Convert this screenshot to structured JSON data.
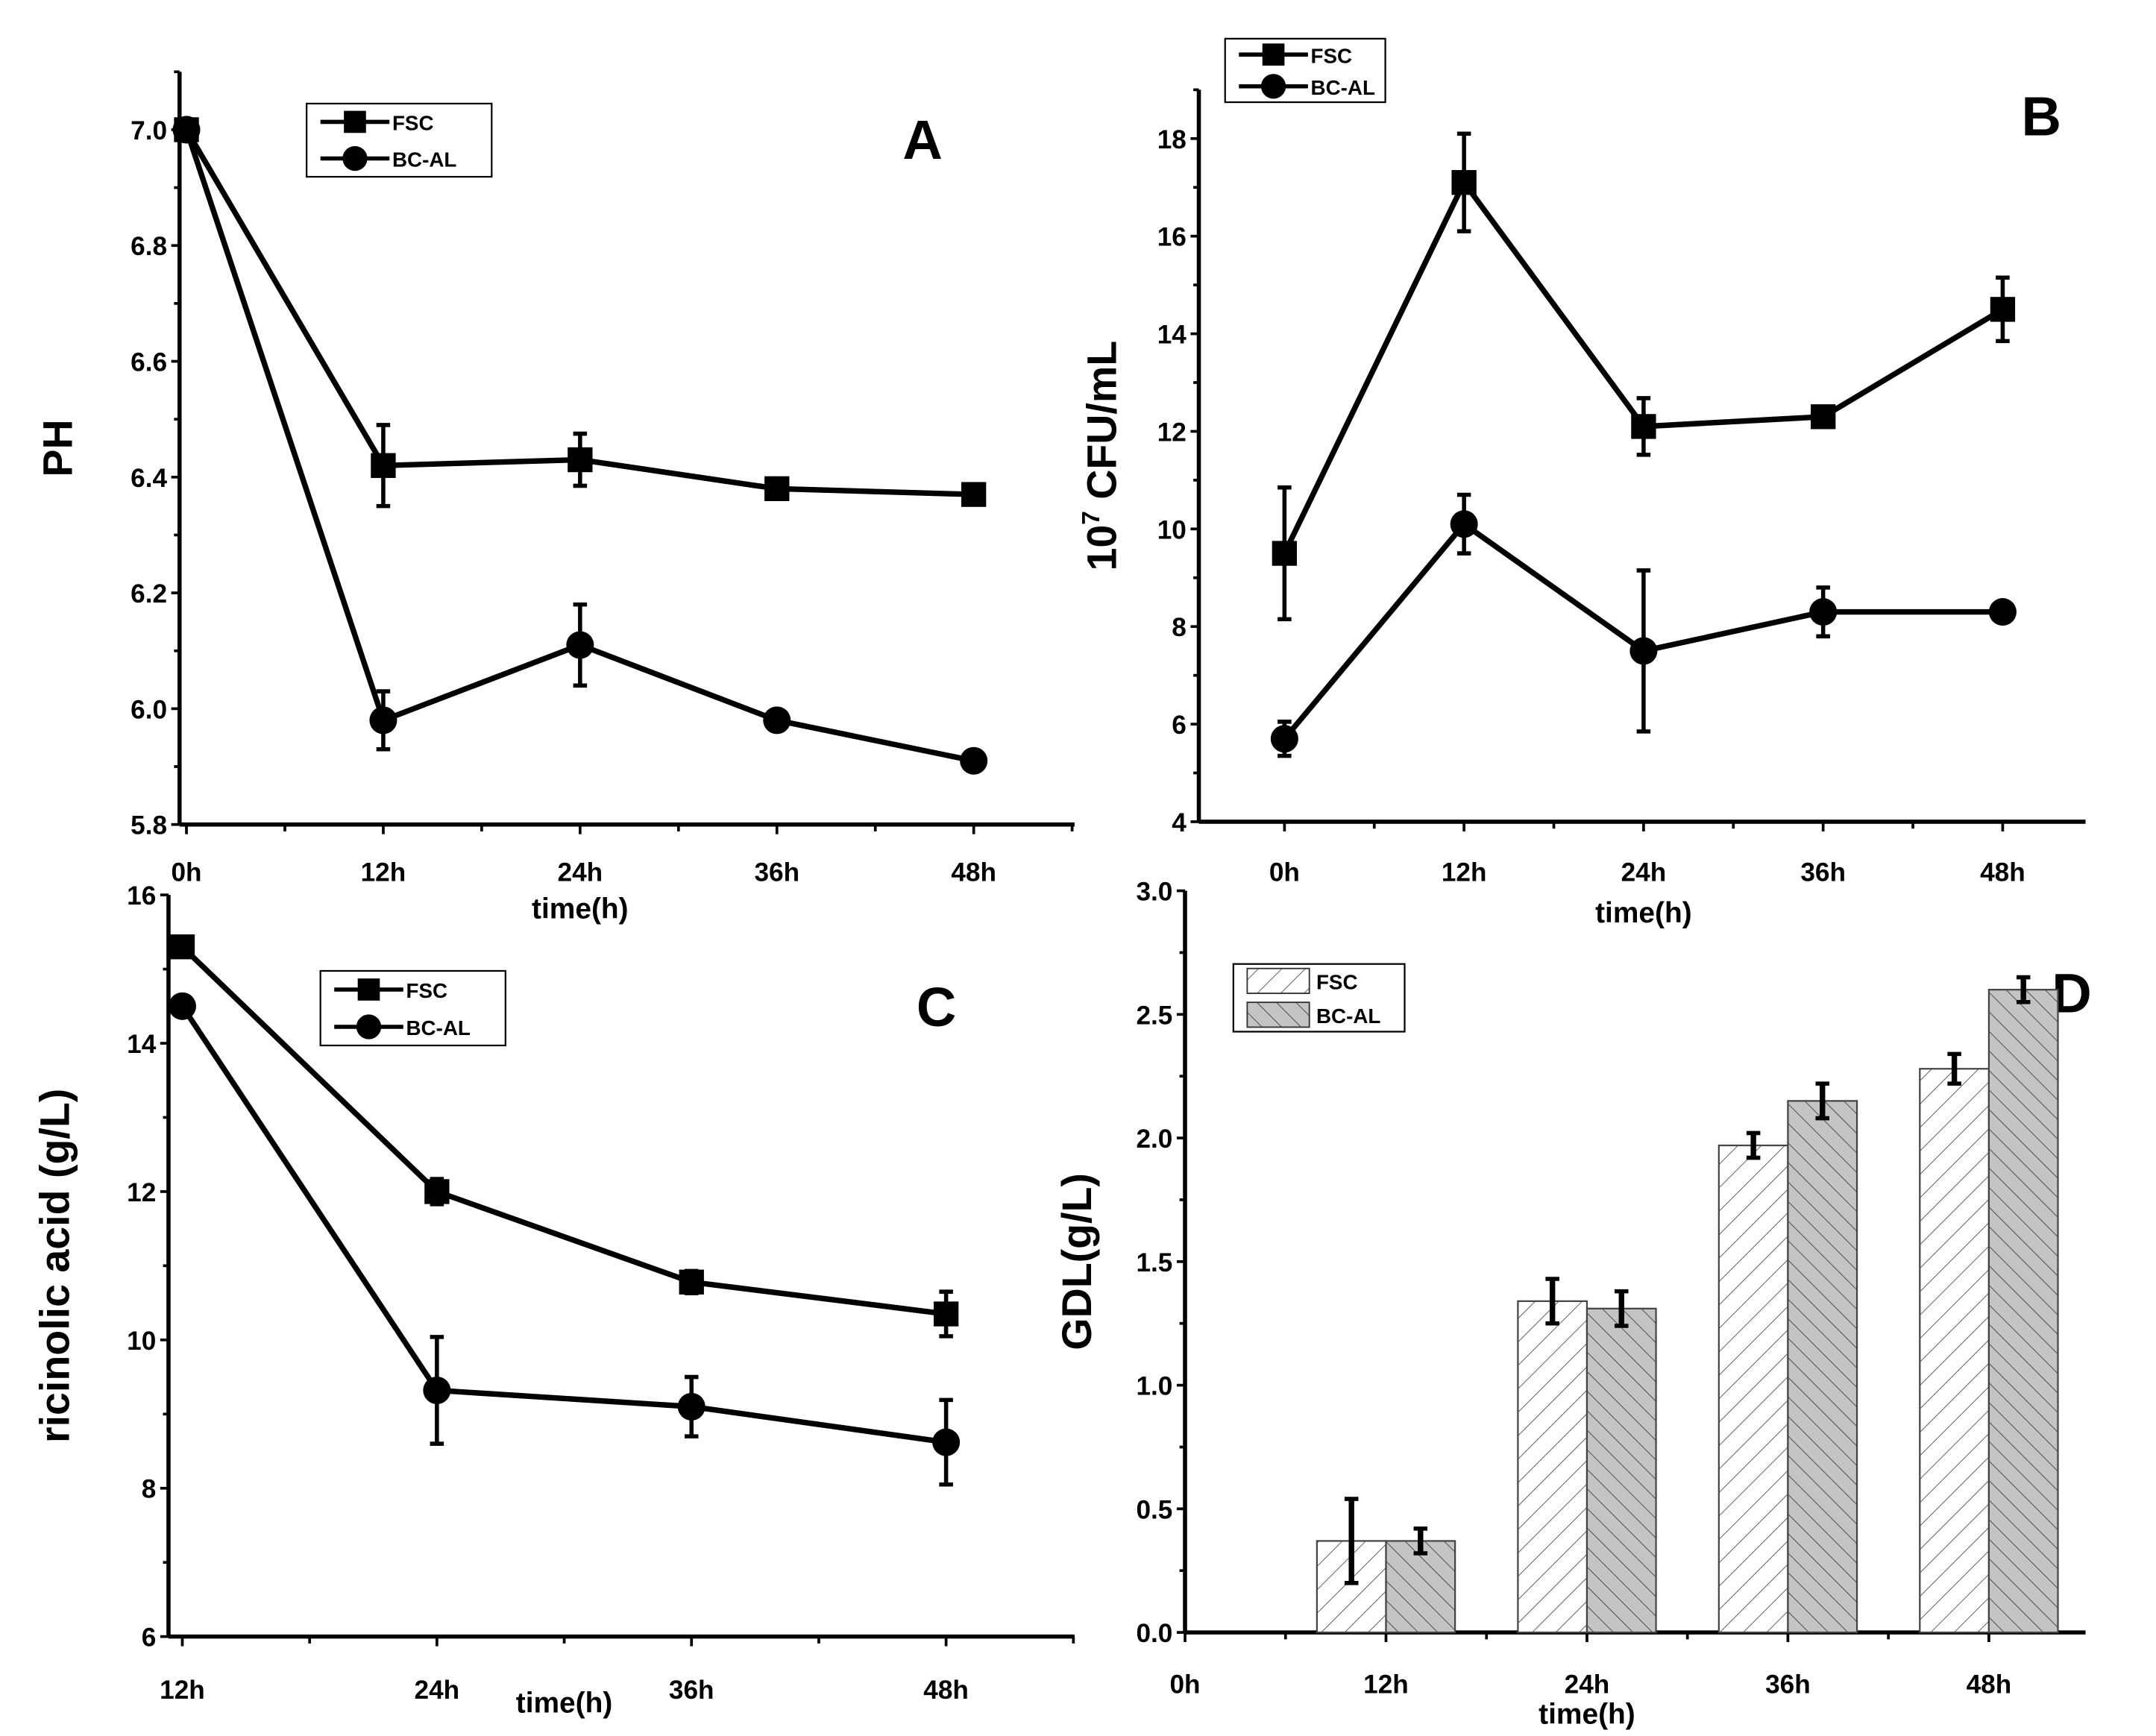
{
  "chart_data": [
    {
      "panel": "A",
      "type": "line",
      "xlabel": "time(h)",
      "ylabel": "PH",
      "x": [
        0,
        12,
        24,
        36,
        48
      ],
      "x_tick_labels": [
        "0h",
        "12h",
        "24h",
        "36h",
        "48h"
      ],
      "y_ticks": [
        "5.8",
        "6.0",
        "6.2",
        "6.4",
        "6.6",
        "6.8",
        "7.0"
      ],
      "ylim": [
        5.8,
        7.1
      ],
      "legend": [
        "FSC",
        "BC-AL"
      ],
      "legend_position": "top-left",
      "series": [
        {
          "name": "FSC",
          "marker": "square",
          "values": [
            7.0,
            6.42,
            6.43,
            6.38,
            6.37
          ],
          "errors": [
            0.01,
            0.07,
            0.045,
            0.012,
            0.012
          ]
        },
        {
          "name": "BC-AL",
          "marker": "circle",
          "values": [
            7.0,
            5.98,
            6.11,
            5.98,
            5.91
          ],
          "errors": [
            0.01,
            0.05,
            0.07,
            0.012,
            0.012
          ]
        }
      ]
    },
    {
      "panel": "B",
      "type": "line",
      "xlabel": "time(h)",
      "ylabel": "10",
      "ylabel_sup": "7",
      "ylabel_rest": " CFU/mL",
      "x": [
        0,
        12,
        24,
        36,
        48
      ],
      "x_tick_labels": [
        "0h",
        "12h",
        "24h",
        "36h",
        "48h"
      ],
      "y_ticks": [
        "4",
        "6",
        "8",
        "10",
        "12",
        "14",
        "16",
        "18"
      ],
      "ylim": [
        4,
        19
      ],
      "legend": [
        "FSC",
        "BC-AL"
      ],
      "legend_position": "top-left",
      "series": [
        {
          "name": "FSC",
          "marker": "square",
          "values": [
            9.5,
            17.1,
            12.1,
            12.3,
            14.5
          ],
          "errors": [
            1.35,
            1.0,
            0.58,
            0.12,
            0.65
          ]
        },
        {
          "name": "BC-AL",
          "marker": "circle",
          "values": [
            5.7,
            10.1,
            7.5,
            8.3,
            8.3
          ],
          "errors": [
            0.35,
            0.6,
            1.65,
            0.5,
            0.12
          ]
        }
      ]
    },
    {
      "panel": "C",
      "type": "line",
      "xlabel": "time(h)",
      "ylabel": "ricinolic acid (g/L)",
      "x": [
        12,
        24,
        36,
        48
      ],
      "x_tick_labels": [
        "12h",
        "24h",
        "36h",
        "48h"
      ],
      "y_ticks": [
        "6",
        "8",
        "10",
        "12",
        "14",
        "16"
      ],
      "ylim": [
        6,
        16
      ],
      "legend": [
        "FSC",
        "BC-AL"
      ],
      "legend_position": "top-center",
      "series": [
        {
          "name": "FSC",
          "marker": "square",
          "values": [
            15.3,
            12.0,
            10.78,
            10.35
          ],
          "errors": [
            0.1,
            0.17,
            0.15,
            0.3
          ]
        },
        {
          "name": "BC-AL",
          "marker": "circle",
          "values": [
            14.5,
            9.32,
            9.1,
            8.62
          ],
          "errors": [
            0.1,
            0.72,
            0.4,
            0.57
          ]
        }
      ]
    },
    {
      "panel": "D",
      "type": "bar",
      "xlabel": "time(h)",
      "ylabel": "GDL(g/L)",
      "x": [
        0,
        12,
        24,
        36,
        48
      ],
      "x_tick_labels": [
        "0h",
        "12h",
        "24h",
        "36h",
        "48h"
      ],
      "categories": [
        "12h",
        "24h",
        "36h",
        "48h"
      ],
      "y_ticks": [
        "0.0",
        "0.5",
        "1.0",
        "1.5",
        "2.0",
        "2.5",
        "3.0"
      ],
      "ylim": [
        0,
        3.0
      ],
      "legend": [
        "FSC",
        "BC-AL"
      ],
      "legend_position": "top-left",
      "series": [
        {
          "name": "FSC",
          "values": [
            0.37,
            1.34,
            1.97,
            2.28
          ],
          "errors": [
            0.17,
            0.09,
            0.05,
            0.06
          ]
        },
        {
          "name": "BC-AL",
          "values": [
            0.37,
            1.31,
            2.15,
            2.6
          ],
          "errors": [
            0.05,
            0.07,
            0.07,
            0.05
          ]
        }
      ]
    }
  ]
}
